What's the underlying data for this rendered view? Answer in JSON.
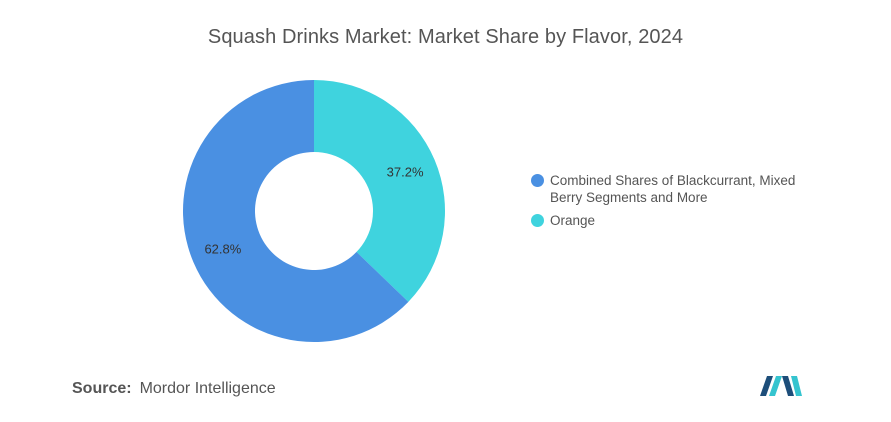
{
  "chart_data": {
    "type": "pie",
    "variant": "donut",
    "title": "Squash Drinks Market: Market Share by Flavor, 2024",
    "categories": [
      "Combined Shares of Blackcurrant, Mixed Berry Segments and More",
      "Orange"
    ],
    "values": [
      62.8,
      37.2
    ],
    "data_labels": [
      "62.8%",
      "37.2%"
    ],
    "colors": [
      "#4a90e2",
      "#3fd3de"
    ],
    "legend_position": "right"
  },
  "source": {
    "prefix": "Source:",
    "name": "Mordor Intelligence"
  },
  "logo": {
    "colors": [
      "#1d4e7a",
      "#35c4cf"
    ]
  }
}
